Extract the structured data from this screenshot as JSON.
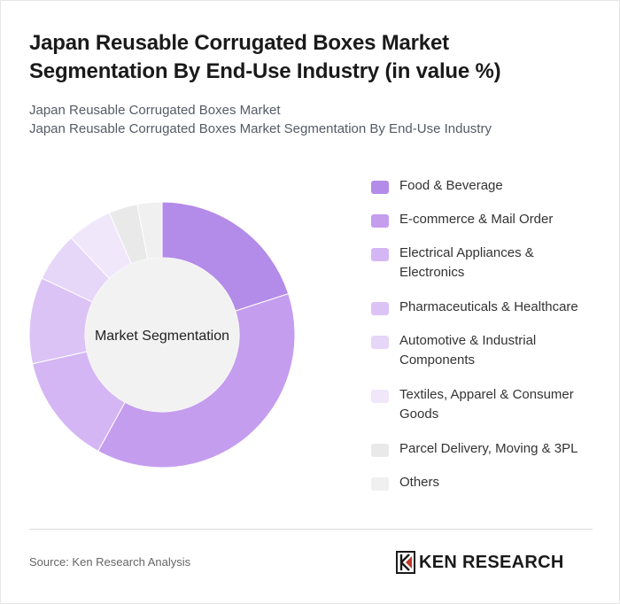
{
  "title": "Japan Reusable Corrugated Boxes Market Segmentation By End-Use Industry (in value %)",
  "breadcrumb": {
    "line1": "Japan Reusable Corrugated Boxes Market",
    "line2": "Japan Reusable Corrugated Boxes Market Segmentation By End-Use Industry"
  },
  "source": "Source: Ken Research Analysis",
  "logo": {
    "text": "KEN RESEARCH"
  },
  "chart_data": {
    "type": "pie",
    "center_label": "Market Segmentation",
    "categories": [
      "Food & Beverage",
      "E-commerce & Mail Order",
      "Electrical Appliances & Electronics",
      "Pharmaceuticals & Healthcare",
      "Automotive & Industrial Components",
      "Textiles, Apparel & Consumer Goods",
      "Parcel Delivery, Moving & 3PL",
      "Others"
    ],
    "values": [
      20,
      38,
      13.5,
      10.5,
      6,
      5.5,
      3.5,
      3
    ],
    "colors": [
      "#b38be8",
      "#c49def",
      "#d5b6f4",
      "#dcc3f6",
      "#e6d6f8",
      "#f0e7fb",
      "#e9e9e9",
      "#f0f0f0"
    ],
    "legend_position": "right"
  }
}
